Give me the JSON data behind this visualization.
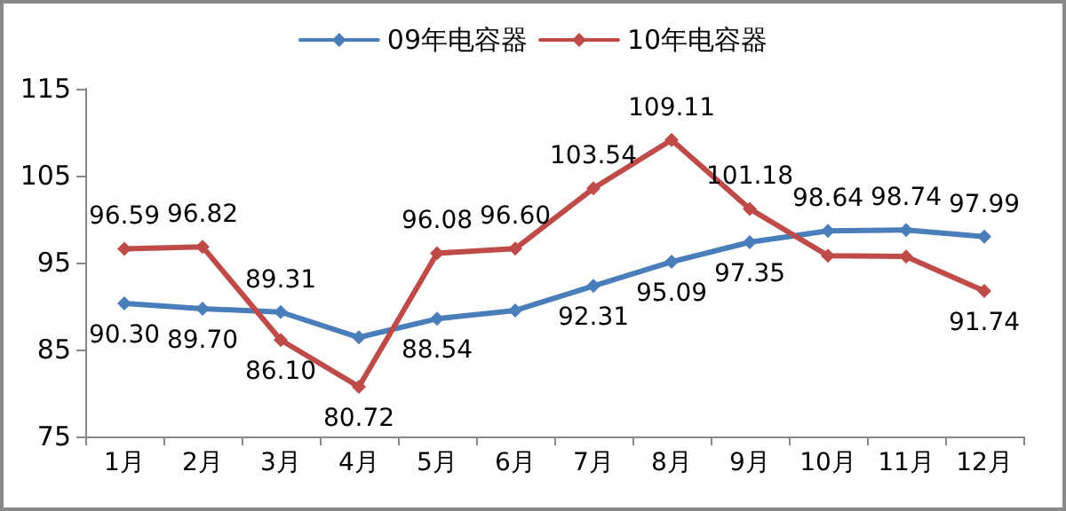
{
  "chart_data": {
    "type": "line",
    "categories": [
      "1月",
      "2月",
      "3月",
      "4月",
      "5月",
      "6月",
      "7月",
      "8月",
      "9月",
      "10月",
      "11月",
      "12月"
    ],
    "series": [
      {
        "name": "09年电容器",
        "color": "#4a7ebb",
        "values": [
          90.3,
          89.7,
          89.31,
          86.4,
          88.54,
          89.5,
          92.31,
          95.09,
          97.35,
          98.64,
          98.74,
          97.99
        ],
        "value_labels": [
          "90.30",
          "89.70",
          "89.31",
          null,
          "88.54",
          null,
          "92.31",
          "95.09",
          "97.35",
          "98.64",
          "98.74",
          "97.99"
        ]
      },
      {
        "name": "10年电容器",
        "color": "#be4b48",
        "values": [
          96.59,
          96.82,
          86.1,
          80.72,
          96.08,
          96.6,
          103.54,
          109.11,
          101.18,
          95.8,
          95.7,
          91.74
        ],
        "value_labels": [
          "96.59",
          "96.82",
          "86.10",
          "80.72",
          "96.08",
          "96.60",
          "103.54",
          "109.11",
          "101.18",
          null,
          null,
          "91.74"
        ]
      }
    ],
    "ylim": [
      75,
      115
    ],
    "yticks": [
      75,
      85,
      95,
      105,
      115
    ],
    "grid": false,
    "legend": "top",
    "marker": "diamond",
    "line_style": "solid"
  }
}
